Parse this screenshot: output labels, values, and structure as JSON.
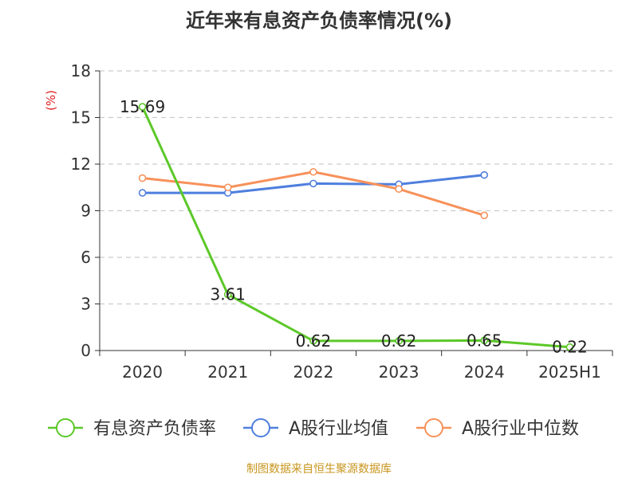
{
  "chart_data": {
    "type": "line",
    "title": "近年来有息资产负债率情况(%)",
    "ylabel": "(%)",
    "xlabel": "",
    "categories": [
      "2020",
      "2021",
      "2022",
      "2023",
      "2024",
      "2025H1"
    ],
    "ylim": [
      0,
      18
    ],
    "yticks": [
      0,
      3,
      6,
      9,
      12,
      15,
      18
    ],
    "grid": true,
    "legend_position": "bottom",
    "series": [
      {
        "name": "有息资产负债率",
        "color": "#5cc828",
        "values": [
          15.69,
          3.61,
          0.62,
          0.62,
          0.65,
          0.22
        ],
        "show_labels": true
      },
      {
        "name": "A股行业均值",
        "color": "#4f7fde",
        "values": [
          10.15,
          10.15,
          10.75,
          10.7,
          11.3,
          null
        ],
        "show_labels": false
      },
      {
        "name": "A股行业中位数",
        "color": "#f7915a",
        "values": [
          11.1,
          10.5,
          11.5,
          10.4,
          8.7,
          null
        ],
        "show_labels": false
      }
    ]
  },
  "footer": {
    "source": "制图数据来自恒生聚源数据库"
  }
}
